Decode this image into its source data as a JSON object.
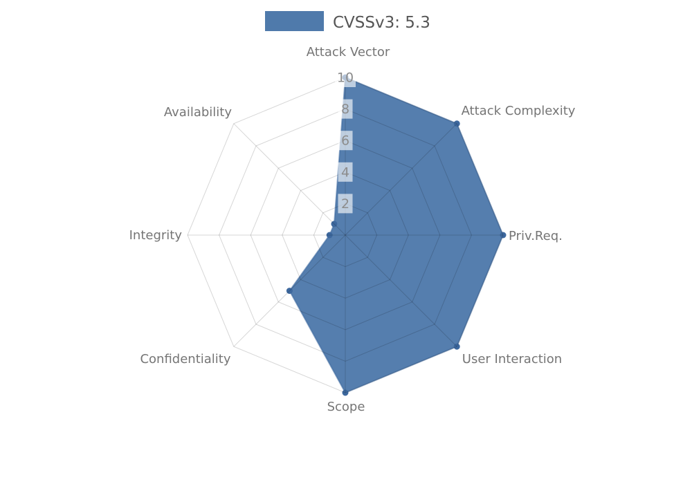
{
  "legend": {
    "label": "CVSSv3: 5.3",
    "swatch_color": "#4f7aab"
  },
  "chart_data": {
    "type": "radar",
    "categories": [
      "Attack Vector",
      "Attack Complexity",
      "Priv.Req.",
      "User Interaction",
      "Scope",
      "Confidentiality",
      "Integrity",
      "Availability"
    ],
    "series": [
      {
        "name": "CVSSv3: 5.3",
        "values": [
          10,
          10,
          10,
          10,
          10,
          5,
          1,
          1
        ]
      }
    ],
    "radial_ticks": [
      2,
      4,
      6,
      8,
      10
    ],
    "range": [
      0,
      10
    ],
    "grid": true,
    "legend_position": "top-center",
    "colors": {
      "fill": "#4f7aab",
      "stroke": "#3d689e",
      "marker": "#3d689e",
      "grid_line_rgba": "rgba(0,0,0,0.16)",
      "axis_label": "#757575",
      "tick_label": "#8c8c8c",
      "tick_bg": "#ffffff",
      "legend_text": "#555555",
      "background": "#ffffff"
    }
  }
}
